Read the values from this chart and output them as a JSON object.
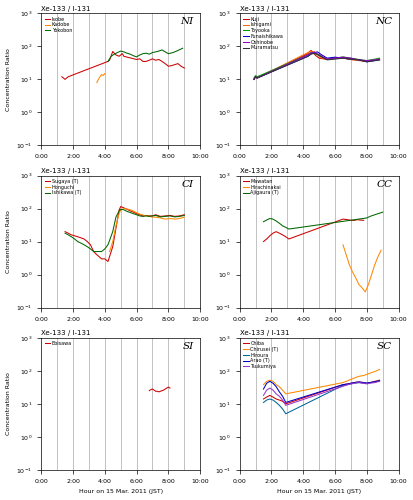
{
  "title_top": "Xe-133 / I-131",
  "xlabel": "Hour on 15 Mar. 2011 (JST)",
  "ylabel": "Concentration Ratio",
  "panels": [
    {
      "label": "NI",
      "series": [
        {
          "name": "Isobe",
          "color": "#cc0000",
          "x": [
            1.3,
            1.4,
            1.5,
            1.6,
            1.7,
            4.2,
            4.3,
            4.5,
            4.7,
            4.9,
            5.0,
            5.1,
            5.2,
            6.0,
            6.2,
            6.4,
            6.6,
            6.8,
            7.0,
            7.2,
            7.4,
            7.6,
            7.8,
            8.0,
            8.2,
            8.4,
            8.6,
            8.8,
            9.0
          ],
          "y": [
            12,
            11,
            10,
            11,
            12,
            35,
            38,
            70,
            55,
            50,
            55,
            60,
            50,
            40,
            42,
            35,
            35,
            38,
            42,
            38,
            40,
            35,
            30,
            25,
            26,
            28,
            30,
            25,
            22
          ]
        },
        {
          "name": "Kadobe",
          "color": "#ff8800",
          "x": [
            3.5,
            3.6,
            3.7,
            3.8,
            3.9,
            4.0
          ],
          "y": [
            8,
            10,
            12,
            14,
            13,
            15
          ]
        },
        {
          "name": "Yokobon",
          "color": "#006600",
          "x": [
            4.2,
            4.4,
            4.6,
            4.8,
            5.0,
            5.2,
            5.4,
            5.6,
            5.8,
            6.0,
            6.2,
            6.4,
            6.6,
            6.8,
            7.0,
            7.2,
            7.4,
            7.6,
            7.8,
            8.0,
            8.3,
            8.6,
            8.9
          ],
          "y": [
            35,
            50,
            58,
            65,
            72,
            68,
            62,
            58,
            52,
            48,
            55,
            60,
            62,
            58,
            65,
            68,
            72,
            78,
            68,
            60,
            65,
            75,
            88
          ]
        }
      ]
    },
    {
      "label": "NC",
      "series": [
        {
          "name": "Kuji",
          "color": "#cc0000",
          "x": [
            0.9,
            1.0,
            1.1,
            4.3,
            4.4,
            4.5,
            4.6,
            4.7,
            4.8,
            4.9,
            5.0,
            5.5,
            6.0,
            6.5,
            7.0,
            7.5,
            8.0,
            8.5,
            8.8
          ],
          "y": [
            10,
            12,
            11,
            60,
            70,
            75,
            65,
            58,
            52,
            48,
            44,
            40,
            44,
            44,
            40,
            38,
            35,
            38,
            40
          ]
        },
        {
          "name": "Ishigami",
          "color": "#ff6600",
          "x": [
            0.9,
            1.0,
            1.1,
            4.3,
            4.5,
            4.7,
            4.9,
            5.1,
            5.5,
            6.0,
            6.5,
            7.0,
            7.5,
            8.0,
            8.5,
            8.8
          ],
          "y": [
            10,
            12,
            11,
            65,
            72,
            68,
            55,
            46,
            40,
            46,
            44,
            40,
            37,
            35,
            39,
            41
          ]
        },
        {
          "name": "Toyooka",
          "color": "#009900",
          "x": [
            0.9,
            1.0,
            1.1,
            4.3,
            4.5,
            4.7,
            4.9,
            5.1,
            5.5,
            6.0,
            6.5,
            7.0,
            7.5,
            8.0,
            8.5,
            8.8
          ],
          "y": [
            11,
            13,
            12,
            55,
            65,
            60,
            57,
            50,
            40,
            44,
            48,
            44,
            40,
            37,
            41,
            44
          ]
        },
        {
          "name": "Funaishikawa",
          "color": "#0000cc",
          "x": [
            0.9,
            1.0,
            1.1,
            4.3,
            4.5,
            4.7,
            4.9,
            5.1,
            5.5,
            6.0,
            6.5,
            7.0,
            7.5,
            8.0,
            8.5,
            8.8
          ],
          "y": [
            10,
            12,
            11,
            50,
            60,
            65,
            68,
            58,
            44,
            47,
            44,
            41,
            39,
            34,
            37,
            39
          ]
        },
        {
          "name": "Oshinobe",
          "color": "#9900cc",
          "x": [
            0.9,
            1.0,
            1.1,
            4.3,
            4.5,
            4.7,
            4.9,
            5.1,
            5.5,
            6.0,
            6.5,
            7.0,
            7.5,
            8.0,
            8.5,
            8.8
          ],
          "y": [
            10,
            12,
            11,
            55,
            64,
            67,
            59,
            53,
            41,
            44,
            47,
            44,
            39,
            37,
            39,
            41
          ]
        },
        {
          "name": "Muramatsu",
          "color": "#333333",
          "x": [
            0.9,
            1.0,
            1.1,
            4.3,
            4.5,
            4.7,
            4.9,
            5.1,
            5.5,
            6.0,
            6.5,
            7.0,
            7.5,
            8.0,
            8.5,
            8.8
          ],
          "y": [
            10,
            12,
            11,
            50,
            58,
            62,
            57,
            50,
            39,
            41,
            44,
            41,
            39,
            34,
            37,
            39
          ]
        }
      ]
    },
    {
      "label": "CI",
      "series": [
        {
          "name": "Sugaya (T)",
          "color": "#cc0000",
          "x": [
            1.5,
            1.7,
            1.9,
            2.1,
            2.3,
            2.5,
            2.7,
            2.9,
            3.1,
            3.3,
            3.5,
            3.8,
            4.0,
            4.2,
            4.5,
            4.7,
            4.9,
            5.0,
            5.2,
            5.4,
            5.6,
            5.8,
            6.0,
            6.2,
            6.4,
            6.6,
            6.8,
            7.0,
            7.2,
            7.5,
            7.8,
            8.1,
            8.4,
            8.7,
            9.0
          ],
          "y": [
            20,
            18,
            16,
            15,
            14,
            13,
            12,
            10,
            8,
            5,
            4,
            3,
            3,
            2.5,
            7,
            25,
            90,
            115,
            105,
            95,
            85,
            78,
            70,
            65,
            60,
            62,
            60,
            60,
            65,
            58,
            60,
            62,
            58,
            60,
            65
          ]
        },
        {
          "name": "Honguchi",
          "color": "#ff8800",
          "x": [
            4.3,
            4.5,
            4.7,
            4.9,
            5.0,
            5.2,
            5.5,
            5.8,
            6.0,
            6.2,
            6.5,
            6.8,
            7.0,
            7.2,
            7.5,
            7.8,
            8.1,
            8.4,
            8.7,
            9.0
          ],
          "y": [
            5,
            10,
            30,
            70,
            90,
            100,
            95,
            85,
            75,
            68,
            62,
            58,
            55,
            55,
            52,
            48,
            50,
            48,
            50,
            55
          ]
        },
        {
          "name": "Ishikawa (T)",
          "color": "#006600",
          "x": [
            1.5,
            1.7,
            1.9,
            2.1,
            2.3,
            2.5,
            2.7,
            2.9,
            3.1,
            3.3,
            3.5,
            3.8,
            4.0,
            4.2,
            4.5,
            4.7,
            4.9,
            5.0,
            5.2,
            5.4,
            5.6,
            5.8,
            6.0,
            6.2,
            6.4,
            6.6,
            6.8,
            7.0,
            7.2,
            7.5,
            7.8,
            8.1,
            8.4,
            8.7,
            9.0
          ],
          "y": [
            18,
            16,
            14,
            12,
            10,
            9,
            8,
            7,
            6,
            5,
            5,
            5,
            6,
            8,
            20,
            55,
            85,
            95,
            92,
            82,
            76,
            70,
            65,
            60,
            58,
            60,
            58,
            60,
            62,
            56,
            58,
            60,
            56,
            58,
            62
          ]
        }
      ]
    },
    {
      "label": "CC",
      "series": [
        {
          "name": "Mawatan",
          "color": "#cc0000",
          "x": [
            1.5,
            1.7,
            1.9,
            2.1,
            2.3,
            2.5,
            2.7,
            2.9,
            3.1,
            6.5,
            6.8,
            7.0,
            7.2,
            7.4,
            7.6,
            7.8
          ],
          "y": [
            10,
            12,
            15,
            18,
            20,
            18,
            16,
            14,
            12,
            48,
            46,
            44,
            44,
            46,
            45,
            44
          ]
        },
        {
          "name": "Hirachinakai",
          "color": "#ff8800",
          "x": [
            6.5,
            6.7,
            6.9,
            7.1,
            7.3,
            7.5,
            7.7,
            7.9,
            8.1,
            8.3,
            8.5,
            8.7,
            8.9
          ],
          "y": [
            8,
            4,
            2,
            1.2,
            0.8,
            0.5,
            0.4,
            0.3,
            0.5,
            1.0,
            2.0,
            3.5,
            5.5
          ]
        },
        {
          "name": "Ajigaura (T)",
          "color": "#006600",
          "x": [
            1.5,
            1.7,
            1.9,
            2.1,
            2.3,
            2.5,
            2.7,
            2.9,
            3.1,
            8.0,
            8.2,
            8.5,
            8.7,
            8.9,
            9.0
          ],
          "y": [
            40,
            45,
            50,
            48,
            42,
            36,
            30,
            27,
            24,
            52,
            58,
            65,
            70,
            75,
            78
          ]
        }
      ]
    },
    {
      "label": "SI",
      "series": [
        {
          "name": "Ebisawa",
          "color": "#cc0000",
          "x": [
            6.8,
            6.9,
            7.0,
            7.1,
            7.2,
            7.3,
            7.4,
            7.5,
            7.6,
            7.7,
            7.8,
            7.9,
            8.0,
            8.1
          ],
          "y": [
            25,
            27,
            28,
            26,
            24,
            24,
            23,
            24,
            25,
            26,
            28,
            30,
            32,
            30
          ]
        }
      ]
    },
    {
      "label": "SC",
      "series": [
        {
          "name": "Chiba",
          "color": "#cc0000",
          "x": [
            1.5,
            1.7,
            1.9,
            2.1,
            2.3,
            2.5,
            2.7,
            2.9,
            6.5,
            6.8,
            7.0,
            7.2,
            7.5,
            7.8,
            8.0,
            8.2,
            8.5,
            8.8
          ],
          "y": [
            14,
            16,
            18,
            16,
            14,
            13,
            12,
            10,
            38,
            40,
            42,
            44,
            46,
            44,
            42,
            44,
            48,
            52
          ]
        },
        {
          "name": "Chirusei (T)",
          "color": "#ff8800",
          "x": [
            1.5,
            1.7,
            1.9,
            2.1,
            2.3,
            2.5,
            2.7,
            2.9,
            6.5,
            6.8,
            7.0,
            7.2,
            7.5,
            7.8,
            8.0,
            8.2,
            8.5,
            8.8
          ],
          "y": [
            38,
            48,
            52,
            48,
            38,
            33,
            26,
            20,
            44,
            50,
            55,
            60,
            68,
            72,
            78,
            85,
            95,
            110
          ]
        },
        {
          "name": "Hiroura",
          "color": "#006699",
          "x": [
            1.5,
            1.7,
            1.9,
            2.1,
            2.3,
            2.5,
            2.7,
            2.9,
            6.5,
            6.8,
            7.0,
            7.2,
            7.5,
            7.8,
            8.0,
            8.2,
            8.5,
            8.8
          ],
          "y": [
            11,
            13,
            14,
            13,
            11,
            9,
            7,
            5,
            36,
            38,
            40,
            42,
            44,
            42,
            42,
            44,
            46,
            50
          ]
        },
        {
          "name": "Arao (T)",
          "color": "#0000cc",
          "x": [
            1.5,
            1.7,
            1.9,
            2.1,
            2.3,
            2.5,
            2.7,
            2.9,
            6.5,
            6.8,
            7.0,
            7.2,
            7.5,
            7.8,
            8.0,
            8.2,
            8.5,
            8.8
          ],
          "y": [
            28,
            42,
            48,
            42,
            33,
            23,
            17,
            11,
            38,
            40,
            42,
            44,
            46,
            44,
            42,
            44,
            46,
            50
          ]
        },
        {
          "name": "Tsukumiya",
          "color": "#9933cc",
          "x": [
            1.5,
            1.7,
            1.9,
            2.1,
            2.3,
            2.5,
            2.7,
            2.9,
            6.5,
            6.8,
            7.0,
            7.2,
            7.5,
            7.8,
            8.0,
            8.2,
            8.5,
            8.8
          ],
          "y": [
            18,
            26,
            30,
            26,
            20,
            17,
            13,
            9,
            34,
            38,
            40,
            42,
            44,
            42,
            40,
            42,
            44,
            48
          ]
        }
      ]
    }
  ]
}
